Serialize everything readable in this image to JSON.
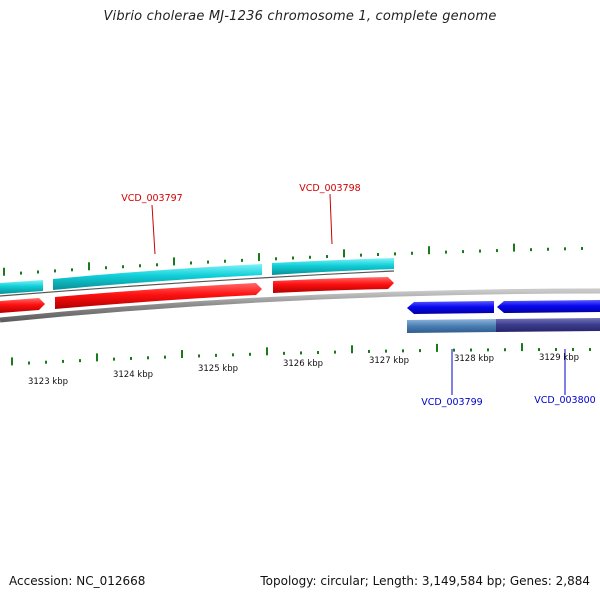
{
  "title": "Vibrio cholerae MJ-1236 chromosome 1, complete genome",
  "footer": {
    "accession": "Accession: NC_012668",
    "summary": "Topology: circular; Length: 3,149,584 bp; Genes: 2,884"
  },
  "colors": {
    "forward_cds": "#ff0000",
    "forward_cds_sim": "#00c8d2",
    "reverse_cds": "#0000ff",
    "reverse_cds_sim": "#4a7fb5",
    "reverse_cds_sim_alt": "#3a3a8c",
    "backbone": "#808080",
    "ticks": "#1a7a1a",
    "forward_label": "#d40000",
    "reverse_label": "#0000cc"
  },
  "kbp_labels": [
    "3123 kbp",
    "3124 kbp",
    "3125 kbp",
    "3126 kbp",
    "3127 kbp",
    "3128 kbp",
    "3129 kbp"
  ],
  "genes": [
    {
      "id": "VCD_003797",
      "strand": "forward"
    },
    {
      "id": "VCD_003798",
      "strand": "forward"
    },
    {
      "id": "VCD_003799",
      "strand": "reverse"
    },
    {
      "id": "VCD_003800",
      "strand": "reverse"
    }
  ]
}
